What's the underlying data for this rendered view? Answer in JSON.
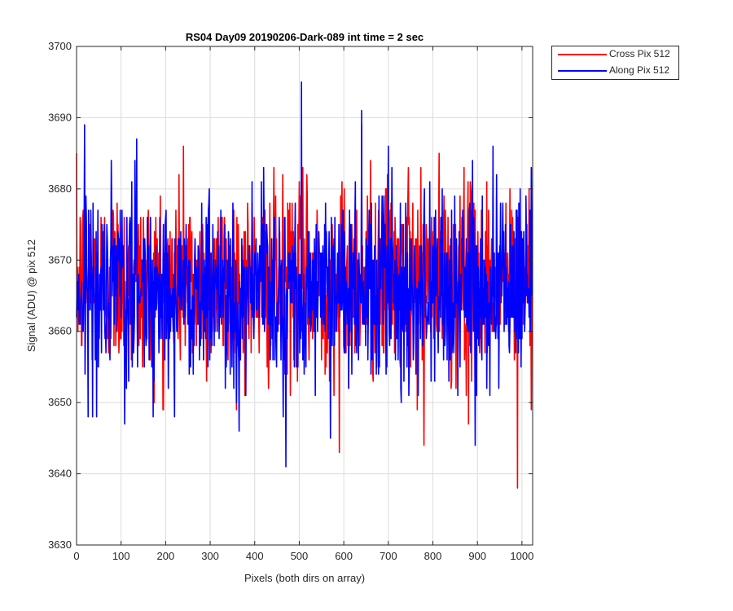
{
  "chart_data": {
    "type": "line",
    "title": "RS04 Day09 20190206-Dark-089 int time = 2 sec",
    "xlabel": "Pixels (both dirs on array)",
    "ylabel": "Signal (ADU) @ pix 512",
    "xlim": [
      0,
      1024
    ],
    "ylim": [
      3630,
      3700
    ],
    "xticks": [
      0,
      100,
      200,
      300,
      400,
      500,
      600,
      700,
      800,
      900,
      1000
    ],
    "yticks": [
      3630,
      3640,
      3650,
      3660,
      3670,
      3680,
      3690,
      3700
    ],
    "grid": true,
    "legend_position": "outside top-right",
    "series": [
      {
        "name": "Cross Pix 512",
        "color": "#ff0000",
        "mean_estimate": 3667,
        "peaks": [
          {
            "x": 18,
            "y": 3686
          },
          {
            "x": 240,
            "y": 3686
          },
          {
            "x": 500,
            "y": 3681
          },
          {
            "x": 640,
            "y": 3689
          },
          {
            "x": 660,
            "y": 3684
          },
          {
            "x": 745,
            "y": 3683
          },
          {
            "x": 870,
            "y": 3683
          }
        ],
        "troughs": [
          {
            "x": 195,
            "y": 3649
          },
          {
            "x": 590,
            "y": 3643
          },
          {
            "x": 780,
            "y": 3644
          },
          {
            "x": 880,
            "y": 3647
          },
          {
            "x": 990,
            "y": 3638
          }
        ]
      },
      {
        "name": "Along Pix 512",
        "color": "#0000ff",
        "mean_estimate": 3666,
        "peaks": [
          {
            "x": 18,
            "y": 3689
          },
          {
            "x": 135,
            "y": 3687
          },
          {
            "x": 505,
            "y": 3695
          },
          {
            "x": 640,
            "y": 3691
          },
          {
            "x": 700,
            "y": 3686
          },
          {
            "x": 935,
            "y": 3686
          }
        ],
        "troughs": [
          {
            "x": 45,
            "y": 3648
          },
          {
            "x": 108,
            "y": 3647
          },
          {
            "x": 365,
            "y": 3646
          },
          {
            "x": 470,
            "y": 3641
          },
          {
            "x": 570,
            "y": 3645
          },
          {
            "x": 895,
            "y": 3644
          }
        ]
      }
    ]
  }
}
